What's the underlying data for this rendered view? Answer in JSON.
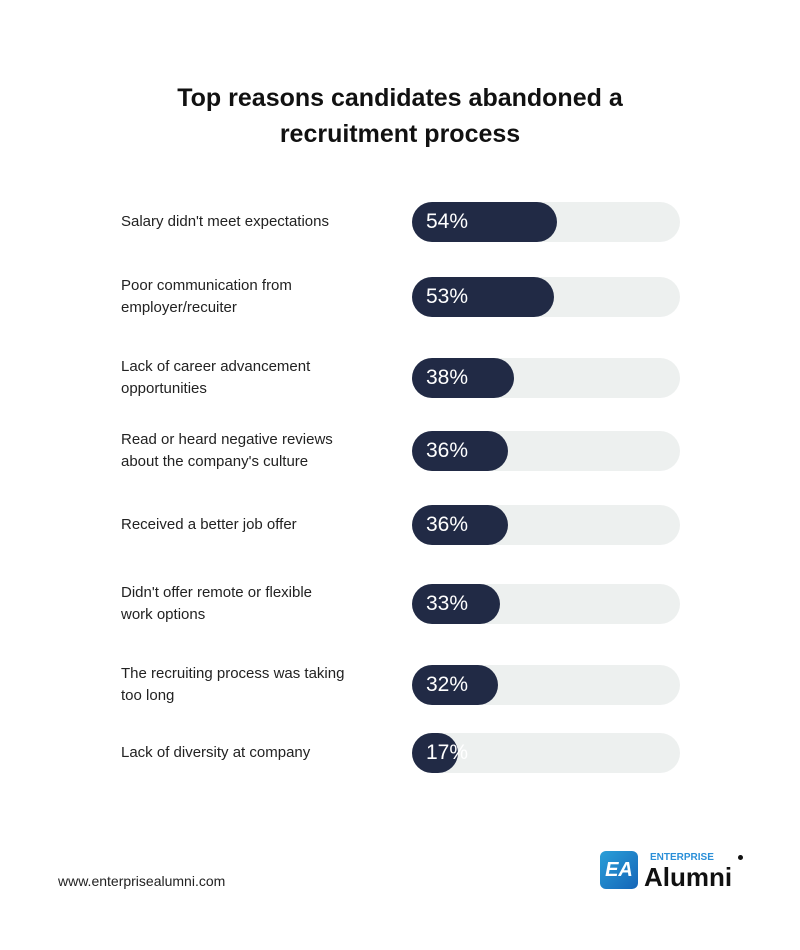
{
  "chart_data": {
    "type": "bar",
    "orientation": "horizontal",
    "title": "Top reasons candidates abandoned a recruitment process",
    "title_lines": [
      "Top reasons candidates abandoned a",
      "recruitment process"
    ],
    "categories": [
      "Salary didn't meet expectations",
      "Poor communication from employer/recuiter",
      "Lack of career advancement opportunities",
      "Read or heard negative reviews about the company's culture",
      "Received a better job offer",
      "Didn't offer remote or flexible work options",
      "The recruiting process was taking too long",
      "Lack of diversity at company"
    ],
    "category_lines": [
      [
        "Salary didn't meet expectations"
      ],
      [
        "Poor communication from",
        "employer/recuiter"
      ],
      [
        "Lack of career advancement",
        "opportunities"
      ],
      [
        "Read or heard negative reviews",
        "about the company's culture"
      ],
      [
        "Received a better job offer"
      ],
      [
        "Didn't offer remote or flexible",
        "work options"
      ],
      [
        "The recruiting process was taking",
        "too long"
      ],
      [
        "Lack of diversity at company"
      ]
    ],
    "values": [
      54,
      53,
      38,
      36,
      36,
      33,
      32,
      17
    ],
    "value_labels": [
      "54%",
      "53%",
      "38%",
      "36%",
      "36%",
      "33%",
      "32%",
      "17%"
    ],
    "xlim": [
      0,
      100
    ],
    "colors": {
      "fill": "#212a45",
      "track": "#edf0ef"
    }
  },
  "footer": {
    "url": "www.enterprisealumni.com",
    "logo": {
      "mark": "EA",
      "small": "ENTERPRISE",
      "big": "Alumni"
    }
  }
}
